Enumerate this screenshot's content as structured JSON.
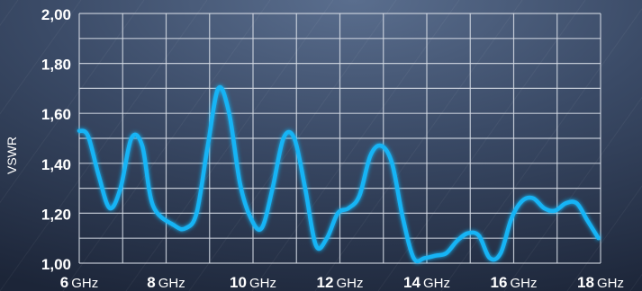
{
  "chart_data": {
    "type": "line",
    "title": "",
    "ylabel": "VSWR",
    "xlabel": "",
    "xlim": [
      6,
      18
    ],
    "ylim": [
      1.0,
      2.0
    ],
    "x_ticks": [
      {
        "value": 6,
        "number": "6",
        "unit": "GHz"
      },
      {
        "value": 8,
        "number": "8",
        "unit": "GHz"
      },
      {
        "value": 10,
        "number": "10",
        "unit": "GHz"
      },
      {
        "value": 12,
        "number": "12",
        "unit": "GHz"
      },
      {
        "value": 14,
        "number": "14",
        "unit": "GHz"
      },
      {
        "value": 16,
        "number": "16",
        "unit": "GHz"
      },
      {
        "value": 18,
        "number": "18",
        "unit": "GHz"
      }
    ],
    "y_ticks": [
      {
        "value": 1.0,
        "label": "1,00"
      },
      {
        "value": 1.2,
        "label": "1,20"
      },
      {
        "value": 1.4,
        "label": "1,40"
      },
      {
        "value": 1.6,
        "label": "1,60"
      },
      {
        "value": 1.8,
        "label": "1,80"
      },
      {
        "value": 2.0,
        "label": "2,00"
      }
    ],
    "grid": true,
    "series": [
      {
        "color": "#19b4f5",
        "x": [
          6.0,
          6.2,
          6.45,
          6.7,
          6.95,
          7.2,
          7.45,
          7.7,
          8.2,
          8.45,
          8.7,
          8.95,
          9.2,
          9.45,
          9.7,
          9.95,
          10.2,
          10.45,
          10.7,
          10.95,
          11.2,
          11.45,
          11.7,
          11.95,
          12.2,
          12.45,
          12.7,
          12.95,
          13.2,
          13.45,
          13.7,
          13.95,
          14.2,
          14.45,
          14.7,
          14.95,
          15.2,
          15.45,
          15.7,
          15.95,
          16.2,
          16.45,
          16.7,
          16.95,
          17.2,
          17.45,
          17.7,
          17.95
        ],
        "y": [
          1.53,
          1.51,
          1.35,
          1.22,
          1.3,
          1.5,
          1.47,
          1.23,
          1.15,
          1.14,
          1.2,
          1.46,
          1.7,
          1.6,
          1.32,
          1.18,
          1.14,
          1.3,
          1.5,
          1.5,
          1.3,
          1.07,
          1.1,
          1.2,
          1.22,
          1.27,
          1.43,
          1.47,
          1.4,
          1.18,
          1.02,
          1.02,
          1.03,
          1.04,
          1.09,
          1.12,
          1.11,
          1.02,
          1.04,
          1.18,
          1.25,
          1.26,
          1.22,
          1.21,
          1.24,
          1.24,
          1.17,
          1.1
        ]
      }
    ]
  }
}
